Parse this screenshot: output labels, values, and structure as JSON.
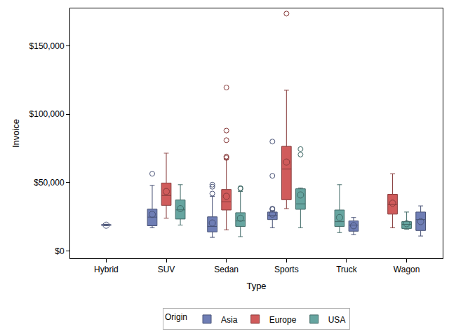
{
  "chart_data": {
    "type": "box",
    "x_label": "Type",
    "y_label": "Invoice",
    "legend_title": "Origin",
    "legend": "bottom",
    "grid": false,
    "categories": [
      "Hybrid",
      "SUV",
      "Sedan",
      "Sports",
      "Truck",
      "Wagon"
    ],
    "series": [
      {
        "name": "Asia",
        "color": "#6f7eb5"
      },
      {
        "name": "Europe",
        "color": "#d05b5b"
      },
      {
        "name": "USA",
        "color": "#66a5a0"
      }
    ],
    "ylim": [
      -5300,
      177300
    ],
    "yticks": [
      {
        "value": 0,
        "label": "$0"
      },
      {
        "value": 50000,
        "label": "$50,000"
      },
      {
        "value": 100000,
        "label": "$100,000"
      },
      {
        "value": 150000,
        "label": "$150,000"
      }
    ],
    "boxes": [
      {
        "category": "Hybrid",
        "series": "Asia",
        "q1": 18800,
        "median": 19100,
        "q3": 19300,
        "whisker_low": 18600,
        "whisker_high": 19600,
        "mean": 18900,
        "outliers": []
      },
      {
        "category": "SUV",
        "series": "Asia",
        "q1": 18500,
        "median": 24800,
        "q3": 30600,
        "whisker_low": 17000,
        "whisker_high": 48000,
        "mean": 26800,
        "outliers": [
          56500
        ]
      },
      {
        "category": "SUV",
        "series": "Europe",
        "q1": 33400,
        "median": 40600,
        "q3": 49700,
        "whisker_low": 24000,
        "whisker_high": 71500,
        "mean": 43500,
        "outliers": []
      },
      {
        "category": "SUV",
        "series": "USA",
        "q1": 23400,
        "median": 30100,
        "q3": 37300,
        "whisker_low": 19000,
        "whisker_high": 48500,
        "mean": 31000,
        "outliers": []
      },
      {
        "category": "Sedan",
        "series": "Asia",
        "q1": 14000,
        "median": 18000,
        "q3": 25000,
        "whisker_low": 10000,
        "whisker_high": 40000,
        "mean": 20500,
        "outliers": [
          42000,
          47000,
          48500
        ]
      },
      {
        "category": "Sedan",
        "series": "Europe",
        "q1": 30000,
        "median": 36000,
        "q3": 45000,
        "whisker_low": 15500,
        "whisker_high": 67000,
        "mean": 40000,
        "outliers": [
          68000,
          69000,
          81000,
          88000,
          119500
        ]
      },
      {
        "category": "Sedan",
        "series": "USA",
        "q1": 18000,
        "median": 22000,
        "q3": 28000,
        "whisker_low": 10500,
        "whisker_high": 43500,
        "mean": 24000,
        "outliers": [
          45500,
          46000
        ]
      },
      {
        "category": "Sports",
        "series": "Asia",
        "q1": 23000,
        "median": 26000,
        "q3": 28500,
        "whisker_low": 17000,
        "whisker_high": 29500,
        "mean": 27000,
        "outliers": [
          30500,
          31000,
          55000,
          80000
        ]
      },
      {
        "category": "Sports",
        "series": "Europe",
        "q1": 37500,
        "median": 60000,
        "q3": 76500,
        "whisker_low": 31000,
        "whisker_high": 117500,
        "mean": 65000,
        "outliers": [
          173500
        ]
      },
      {
        "category": "Sports",
        "series": "USA",
        "q1": 30500,
        "median": 34500,
        "q3": 45500,
        "whisker_low": 17000,
        "whisker_high": 46000,
        "mean": 41000,
        "outliers": [
          70500,
          74500
        ]
      },
      {
        "category": "Truck",
        "series": "USA",
        "q1": 18000,
        "median": 21500,
        "q3": 30000,
        "whisker_low": 13500,
        "whisker_high": 48500,
        "mean": 24500,
        "outliers": []
      },
      {
        "category": "Truck",
        "series": "Asia",
        "q1": 14500,
        "median": 19000,
        "q3": 22000,
        "whisker_low": 12000,
        "whisker_high": 24500,
        "mean": 18500,
        "outliers": []
      },
      {
        "category": "Wagon",
        "series": "Europe",
        "q1": 27000,
        "median": 34000,
        "q3": 41500,
        "whisker_low": 17000,
        "whisker_high": 56500,
        "mean": 35000,
        "outliers": []
      },
      {
        "category": "Wagon",
        "series": "USA",
        "q1": 16500,
        "median": 19500,
        "q3": 21500,
        "whisker_low": 16000,
        "whisker_high": 28500,
        "mean": 20000,
        "outliers": []
      },
      {
        "category": "Wagon",
        "series": "Asia",
        "q1": 15000,
        "median": 23000,
        "q3": 28500,
        "whisker_low": 11000,
        "whisker_high": 33000,
        "mean": 21500,
        "outliers": []
      }
    ]
  }
}
